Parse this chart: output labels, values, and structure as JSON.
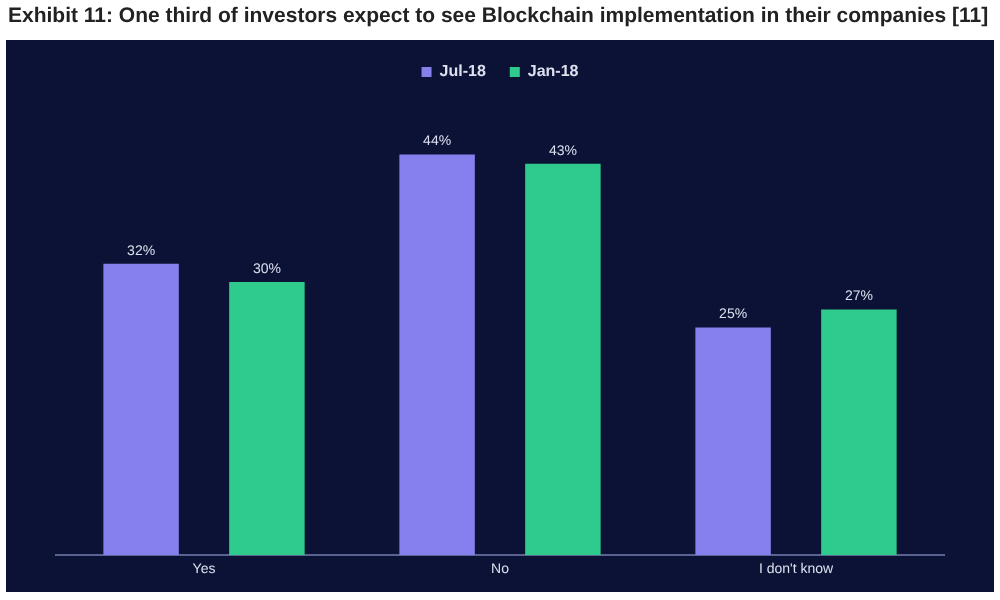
{
  "chart_data": {
    "type": "bar",
    "title": "Exhibit 11: One third of investors expect to see Blockchain implementation in their companies [11]",
    "categories": [
      "Yes",
      "No",
      "I don't know"
    ],
    "series": [
      {
        "name": "Jul-18",
        "color": "#8580ee",
        "values": [
          32,
          44,
          25
        ],
        "value_labels": [
          "32%",
          "44%",
          "25%"
        ]
      },
      {
        "name": "Jan-18",
        "color": "#2fcb8c",
        "values": [
          30,
          43,
          27
        ],
        "value_labels": [
          "30%",
          "43%",
          "27%"
        ]
      }
    ],
    "legend": "top",
    "grid": false
  }
}
